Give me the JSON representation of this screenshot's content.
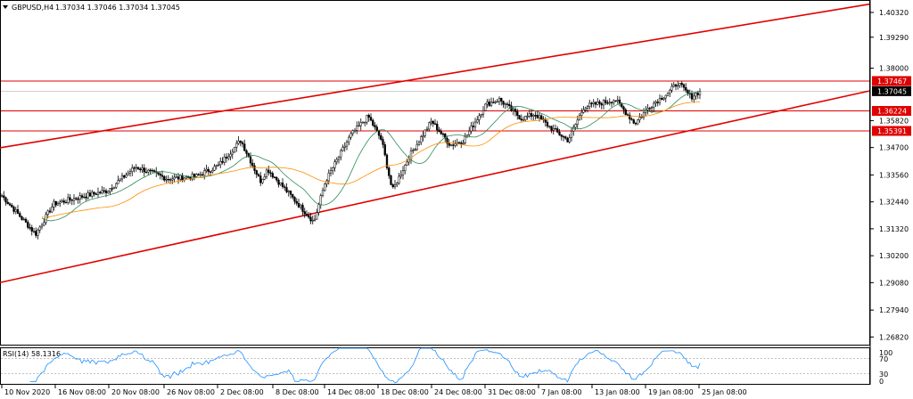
{
  "header": {
    "title": "GBPUSD,H4",
    "ohlc": "1.37034 1.37046 1.37034 1.37045"
  },
  "colors": {
    "candle": "#000000",
    "ma_fast": "#2e8b57",
    "ma_slow": "#ff8c00",
    "channel": "#e00000",
    "level": "#e00000",
    "price_tag_bg": "#000000",
    "level_tag_bg": "#e00000",
    "rsi": "#1e90ff"
  },
  "price_axis": {
    "ticks": [
      "1.40320",
      "1.39290",
      "1.38000",
      "1.35820",
      "1.34700",
      "1.33560",
      "1.32440",
      "1.31320",
      "1.30200",
      "1.29080",
      "1.27940",
      "1.26820"
    ]
  },
  "price_tags": [
    {
      "label": "1.37467",
      "kind": "level"
    },
    {
      "label": "1.37045",
      "kind": "current"
    },
    {
      "label": "1.36224",
      "kind": "level"
    },
    {
      "label": "1.35391",
      "kind": "level"
    }
  ],
  "time_axis": {
    "labels": [
      "10 Nov 2020",
      "16 Nov 08:00",
      "20 Nov 08:00",
      "26 Nov 08:00",
      "2 Dec 08:00",
      "8 Dec 08:00",
      "14 Dec 08:00",
      "18 Dec 08:00",
      "24 Dec 08:00",
      "31 Dec 08:00",
      "7 Jan 08:00",
      "13 Jan 08:00",
      "19 Jan 08:00",
      "25 Jan 08:00"
    ]
  },
  "rsi_panel": {
    "title": "RSI(14) 58.1316",
    "ticks": [
      "100",
      "70",
      "30",
      "0"
    ]
  },
  "chart_data": {
    "type": "candlestick",
    "symbol": "GBPUSD",
    "timeframe": "H4",
    "ylim": [
      1.265,
      1.408
    ],
    "anchors": [
      {
        "time": "10 Nov 2020",
        "close": 1.327
      },
      {
        "time": "12 Nov 08:00",
        "close": 1.311
      },
      {
        "time": "16 Nov 08:00",
        "close": 1.3235
      },
      {
        "time": "18 Nov 08:00",
        "close": 1.326
      },
      {
        "time": "20 Nov 08:00",
        "close": 1.329
      },
      {
        "time": "23 Nov 08:00",
        "close": 1.339
      },
      {
        "time": "26 Nov 08:00",
        "close": 1.334
      },
      {
        "time": "30 Nov 08:00",
        "close": 1.335
      },
      {
        "time": "2 Dec 08:00",
        "close": 1.3395
      },
      {
        "time": "4 Dec 08:00",
        "close": 1.35
      },
      {
        "time": "7 Dec 08:00",
        "close": 1.333
      },
      {
        "time": "8 Dec 08:00",
        "close": 1.338
      },
      {
        "time": "11 Dec 08:00",
        "close": 1.316
      },
      {
        "time": "14 Dec 08:00",
        "close": 1.333
      },
      {
        "time": "16 Dec 08:00",
        "close": 1.352
      },
      {
        "time": "17 Dec 08:00",
        "close": 1.36
      },
      {
        "time": "18 Dec 08:00",
        "close": 1.35
      },
      {
        "time": "21 Dec 08:00",
        "close": 1.329
      },
      {
        "time": "22 Dec 08:00",
        "close": 1.344
      },
      {
        "time": "23 Dec 08:00",
        "close": 1.358
      },
      {
        "time": "24 Dec 08:00",
        "close": 1.348
      },
      {
        "time": "28 Dec 08:00",
        "close": 1.35
      },
      {
        "time": "30 Dec 08:00",
        "close": 1.365
      },
      {
        "time": "31 Dec 08:00",
        "close": 1.367
      },
      {
        "time": "4 Jan 08:00",
        "close": 1.359
      },
      {
        "time": "6 Jan 08:00",
        "close": 1.361
      },
      {
        "time": "7 Jan 08:00",
        "close": 1.356
      },
      {
        "time": "11 Jan 08:00",
        "close": 1.35
      },
      {
        "time": "12 Jan 08:00",
        "close": 1.364
      },
      {
        "time": "13 Jan 08:00",
        "close": 1.366
      },
      {
        "time": "15 Jan 08:00",
        "close": 1.367
      },
      {
        "time": "18 Jan 08:00",
        "close": 1.357
      },
      {
        "time": "19 Jan 08:00",
        "close": 1.364
      },
      {
        "time": "21 Jan 08:00",
        "close": 1.37
      },
      {
        "time": "22 Jan 08:00",
        "close": 1.374
      },
      {
        "time": "25 Jan 08:00",
        "close": 1.368
      },
      {
        "time": "26 Jan 08:00",
        "close": 1.37045
      }
    ],
    "horizontal_levels": [
      1.37467,
      1.36224,
      1.35391
    ],
    "last_price": 1.37045,
    "channel": {
      "upper": [
        {
          "time": "10 Nov 2020",
          "price": 1.347
        },
        {
          "time": "26 Jan 08:00",
          "price": 1.395
        }
      ],
      "lower": [
        {
          "time": "10 Nov 2020",
          "price": 1.291
        },
        {
          "time": "26 Jan 08:00",
          "price": 1.355
        }
      ]
    },
    "indicators": [
      "moving average (fast)",
      "moving average (slow)",
      "RSI(14)"
    ],
    "rsi": {
      "period": 14,
      "last": 58.1316,
      "levels": [
        70,
        30
      ],
      "ylim": [
        0,
        100
      ]
    }
  }
}
